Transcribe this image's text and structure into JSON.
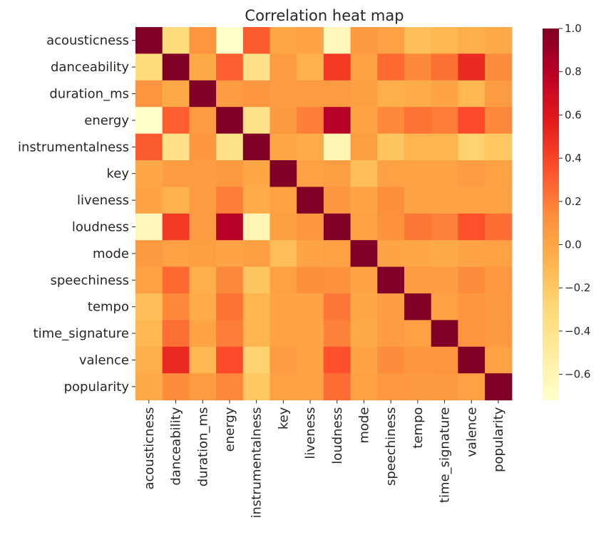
{
  "chart_data": {
    "type": "heatmap",
    "title": "Correlation heat map",
    "colormap": "YlOrRd",
    "row_labels": [
      "acousticness",
      "danceability",
      "duration_ms",
      "energy",
      "instrumentalness",
      "key",
      "liveness",
      "loudness",
      "mode",
      "speechiness",
      "tempo",
      "time_signature",
      "valence",
      "popularity"
    ],
    "col_labels": [
      "acousticness",
      "danceability",
      "duration_ms",
      "energy",
      "instrumentalness",
      "key",
      "liveness",
      "loudness",
      "mode",
      "speechiness",
      "tempo",
      "time_signature",
      "valence",
      "popularity"
    ],
    "values": [
      [
        1.0,
        -0.33,
        0.1,
        -0.72,
        0.31,
        -0.01,
        0.01,
        -0.63,
        0.07,
        0.03,
        -0.14,
        -0.1,
        -0.05,
        -0.03
      ],
      [
        -0.33,
        1.0,
        -0.02,
        0.3,
        -0.38,
        0.05,
        -0.07,
        0.44,
        0.03,
        0.26,
        0.15,
        0.24,
        0.51,
        0.14
      ],
      [
        0.1,
        -0.02,
        1.0,
        0.06,
        0.09,
        0.05,
        0.06,
        0.06,
        0.04,
        -0.05,
        -0.04,
        0.01,
        -0.1,
        0.06
      ],
      [
        -0.72,
        0.3,
        0.06,
        1.0,
        -0.39,
        0.07,
        0.19,
        0.81,
        0.01,
        0.15,
        0.23,
        0.19,
        0.37,
        0.16
      ],
      [
        0.31,
        -0.38,
        0.09,
        -0.39,
        1.0,
        -0.01,
        -0.04,
        -0.61,
        0.04,
        -0.18,
        -0.09,
        -0.09,
        -0.25,
        -0.19
      ],
      [
        -0.01,
        0.05,
        0.05,
        0.07,
        -0.01,
        1.0,
        0.02,
        0.04,
        -0.14,
        0.03,
        0.01,
        0.01,
        0.05,
        0.03
      ],
      [
        0.01,
        -0.07,
        0.06,
        0.19,
        -0.04,
        0.02,
        1.0,
        0.09,
        0.01,
        0.12,
        0.01,
        0.01,
        0.02,
        0.02
      ],
      [
        -0.63,
        0.44,
        0.06,
        0.81,
        -0.61,
        0.04,
        0.09,
        1.0,
        0.03,
        0.11,
        0.21,
        0.18,
        0.35,
        0.25
      ],
      [
        0.07,
        0.03,
        0.04,
        0.01,
        0.04,
        -0.14,
        0.01,
        0.03,
        1.0,
        0.01,
        -0.01,
        -0.03,
        0.01,
        0.03
      ],
      [
        0.03,
        0.26,
        -0.05,
        0.15,
        -0.18,
        0.03,
        0.12,
        0.11,
        0.01,
        1.0,
        0.05,
        0.05,
        0.14,
        0.08
      ],
      [
        -0.14,
        0.15,
        -0.04,
        0.23,
        -0.09,
        0.01,
        0.01,
        0.21,
        -0.01,
        0.05,
        1.0,
        0.03,
        0.09,
        0.07
      ],
      [
        -0.1,
        0.24,
        0.01,
        0.19,
        -0.09,
        0.01,
        0.01,
        0.18,
        -0.03,
        0.05,
        0.03,
        1.0,
        0.1,
        0.07
      ],
      [
        -0.05,
        0.51,
        -0.1,
        0.37,
        -0.25,
        0.05,
        0.02,
        0.35,
        0.01,
        0.14,
        0.09,
        0.1,
        1.0,
        0.03
      ],
      [
        -0.03,
        0.14,
        0.06,
        0.16,
        -0.19,
        0.03,
        0.02,
        0.25,
        0.03,
        0.08,
        0.07,
        0.07,
        0.03,
        1.0
      ]
    ],
    "vmin": -0.72,
    "vmax": 1.0,
    "colorbar_ticks": [
      1.0,
      0.8,
      0.6,
      0.4,
      0.2,
      0.0,
      -0.2,
      -0.4,
      -0.6
    ],
    "colorbar_tick_labels": [
      "1.0",
      "0.8",
      "0.6",
      "0.4",
      "0.2",
      "0.0",
      "−0.2",
      "−0.4",
      "−0.6"
    ],
    "grid": false
  }
}
